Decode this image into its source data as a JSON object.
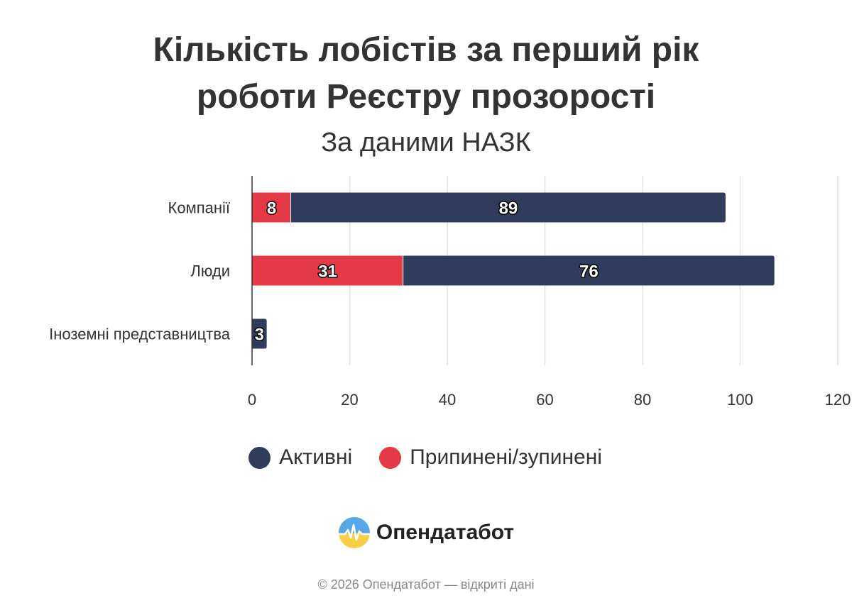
{
  "title_line1": "Кількість лобістів за перший рік",
  "title_line2": "роботи Реєстру прозорості",
  "subtitle": "За даними НАЗК",
  "chart_data": {
    "type": "bar",
    "orientation": "horizontal",
    "stacked": true,
    "categories": [
      "Компанії",
      "Люди",
      "Іноземні представництва"
    ],
    "series": [
      {
        "name": "Припинені/зупинені",
        "values": [
          8,
          31,
          0
        ],
        "color": "#e63946"
      },
      {
        "name": "Активні",
        "values": [
          89,
          76,
          3
        ],
        "color": "#2f3c5c"
      }
    ],
    "xlim": [
      0,
      120
    ],
    "xticks": [
      0,
      20,
      40,
      60,
      80,
      100,
      120
    ],
    "grid": true,
    "legend_position": "bottom-center"
  },
  "legend": [
    {
      "label": "Активні",
      "color": "#2f3c5c"
    },
    {
      "label": "Припинені/зупинені",
      "color": "#e63946"
    }
  ],
  "brand": {
    "name": "Опендатабот",
    "logo_icon": "opendatabot-logo-icon"
  },
  "copyright": "© 2026 Опендатабот — відкриті дані"
}
